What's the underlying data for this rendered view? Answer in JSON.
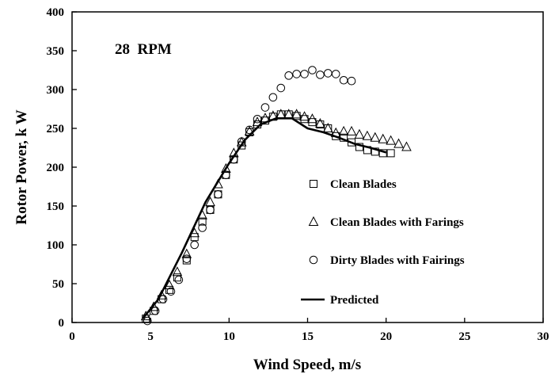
{
  "chart_data": {
    "type": "scatter",
    "annotation": "28  RPM",
    "xlabel": "Wind Speed, m/s",
    "ylabel": "Rotor Power, k W",
    "xlim": [
      0,
      30
    ],
    "ylim": [
      0,
      400
    ],
    "xticks": [
      0,
      5,
      10,
      15,
      20,
      25,
      30
    ],
    "yticks": [
      0,
      50,
      100,
      150,
      200,
      250,
      300,
      350,
      400
    ],
    "grid": false,
    "legend_position": "right",
    "series": [
      {
        "name": "Clean Blades",
        "marker": "square",
        "points": [
          [
            4.7,
            5
          ],
          [
            5.2,
            15
          ],
          [
            5.7,
            30
          ],
          [
            6.2,
            42
          ],
          [
            6.7,
            58
          ],
          [
            7.3,
            80
          ],
          [
            7.8,
            110
          ],
          [
            8.3,
            130
          ],
          [
            8.8,
            145
          ],
          [
            9.3,
            165
          ],
          [
            9.8,
            190
          ],
          [
            10.3,
            210
          ],
          [
            10.8,
            228
          ],
          [
            11.3,
            245
          ],
          [
            11.8,
            255
          ],
          [
            12.3,
            260
          ],
          [
            12.8,
            265
          ],
          [
            13.3,
            268
          ],
          [
            13.8,
            268
          ],
          [
            14.3,
            266
          ],
          [
            14.8,
            262
          ],
          [
            15.3,
            258
          ],
          [
            15.8,
            255
          ],
          [
            16.3,
            250
          ],
          [
            16.8,
            240
          ],
          [
            17.3,
            238
          ],
          [
            17.8,
            232
          ],
          [
            18.3,
            226
          ],
          [
            18.8,
            222
          ],
          [
            19.3,
            220
          ],
          [
            19.8,
            218
          ],
          [
            20.3,
            218
          ]
        ]
      },
      {
        "name": "Clean Blades with Farings",
        "marker": "triangle",
        "points": [
          [
            4.7,
            8
          ],
          [
            5.2,
            20
          ],
          [
            5.7,
            35
          ],
          [
            6.2,
            48
          ],
          [
            6.7,
            65
          ],
          [
            7.3,
            88
          ],
          [
            7.8,
            115
          ],
          [
            8.3,
            138
          ],
          [
            8.8,
            155
          ],
          [
            9.3,
            178
          ],
          [
            9.8,
            198
          ],
          [
            10.3,
            218
          ],
          [
            10.8,
            232
          ],
          [
            11.3,
            246
          ],
          [
            11.8,
            258
          ],
          [
            12.3,
            263
          ],
          [
            12.8,
            266
          ],
          [
            13.3,
            268
          ],
          [
            13.8,
            268
          ],
          [
            14.3,
            268
          ],
          [
            14.8,
            265
          ],
          [
            15.3,
            262
          ],
          [
            15.8,
            256
          ],
          [
            16.3,
            250
          ],
          [
            16.8,
            244
          ],
          [
            17.3,
            246
          ],
          [
            17.8,
            246
          ],
          [
            18.3,
            242
          ],
          [
            18.8,
            240
          ],
          [
            19.3,
            238
          ],
          [
            19.8,
            236
          ],
          [
            20.3,
            234
          ],
          [
            20.8,
            230
          ],
          [
            21.3,
            226
          ]
        ]
      },
      {
        "name": "Dirty Blades with Fairings",
        "marker": "circle",
        "points": [
          [
            4.8,
            2
          ],
          [
            5.3,
            15
          ],
          [
            5.8,
            30
          ],
          [
            6.3,
            40
          ],
          [
            6.8,
            55
          ],
          [
            7.3,
            82
          ],
          [
            7.8,
            100
          ],
          [
            8.3,
            122
          ],
          [
            8.8,
            145
          ],
          [
            9.3,
            165
          ],
          [
            9.8,
            190
          ],
          [
            10.3,
            210
          ],
          [
            10.8,
            233
          ],
          [
            11.3,
            248
          ],
          [
            11.8,
            262
          ],
          [
            12.3,
            277
          ],
          [
            12.8,
            290
          ],
          [
            13.3,
            302
          ],
          [
            13.8,
            318
          ],
          [
            14.3,
            320
          ],
          [
            14.8,
            320
          ],
          [
            15.3,
            325
          ],
          [
            15.8,
            319
          ],
          [
            16.3,
            321
          ],
          [
            16.8,
            320
          ],
          [
            17.3,
            312
          ],
          [
            17.8,
            311
          ]
        ]
      },
      {
        "name": "Predicted",
        "style": "line",
        "points": [
          [
            4.5,
            5
          ],
          [
            5.5,
            30
          ],
          [
            7,
            90
          ],
          [
            8.5,
            155
          ],
          [
            10,
            205
          ],
          [
            11,
            235
          ],
          [
            12,
            255
          ],
          [
            13,
            263
          ],
          [
            14,
            263
          ],
          [
            15,
            250
          ],
          [
            16,
            245
          ],
          [
            17,
            238
          ],
          [
            18,
            230
          ],
          [
            19,
            225
          ],
          [
            20,
            219
          ]
        ]
      }
    ]
  }
}
